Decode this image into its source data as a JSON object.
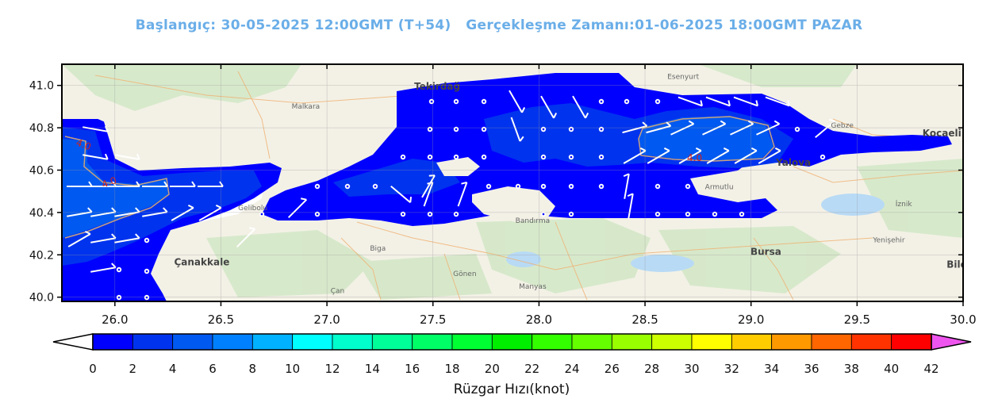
{
  "header": {
    "start_label": "Başlangıç: 30-05-2025 12:00GMT (T+54)",
    "valid_label": "Gerçekleşme Zamanı:01-06-2025 18:00GMT PAZAR"
  },
  "map": {
    "lon_range": [
      25.75,
      30.0
    ],
    "lat_range": [
      39.98,
      41.1
    ],
    "x_ticks": [
      "26.0",
      "26.5",
      "27.0",
      "27.5",
      "28.0",
      "28.5",
      "29.0",
      "29.5",
      "30.0"
    ],
    "x_tick_values": [
      26.0,
      26.5,
      27.0,
      27.5,
      28.0,
      28.5,
      29.0,
      29.5,
      30.0
    ],
    "y_ticks": [
      "40.0",
      "40.2",
      "40.4",
      "40.6",
      "40.8",
      "41.0"
    ],
    "y_tick_values": [
      40.0,
      40.2,
      40.4,
      40.6,
      40.8,
      41.0
    ],
    "contour_label": "4.0",
    "places": [
      {
        "name": "Tekirdağ",
        "lon": 27.52,
        "lat": 40.98,
        "bold": true
      },
      {
        "name": "Malkara",
        "lon": 26.9,
        "lat": 40.89,
        "bold": false
      },
      {
        "name": "Esenyurt",
        "lon": 28.68,
        "lat": 41.03,
        "bold": false
      },
      {
        "name": "Gebze",
        "lon": 29.43,
        "lat": 40.8,
        "bold": false
      },
      {
        "name": "Kocaeli",
        "lon": 29.9,
        "lat": 40.76,
        "bold": true
      },
      {
        "name": "Yalova",
        "lon": 29.2,
        "lat": 40.62,
        "bold": true
      },
      {
        "name": "Armutlu",
        "lon": 28.85,
        "lat": 40.51,
        "bold": false
      },
      {
        "name": "Bandırma",
        "lon": 27.97,
        "lat": 40.35,
        "bold": false
      },
      {
        "name": "Biga",
        "lon": 27.24,
        "lat": 40.22,
        "bold": false
      },
      {
        "name": "Gönen",
        "lon": 27.65,
        "lat": 40.1,
        "bold": false
      },
      {
        "name": "Manyas",
        "lon": 27.97,
        "lat": 40.04,
        "bold": false
      },
      {
        "name": "Bursa",
        "lon": 29.07,
        "lat": 40.2,
        "bold": true
      },
      {
        "name": "Çanakkale",
        "lon": 26.41,
        "lat": 40.15,
        "bold": true
      },
      {
        "name": "Gelibolu",
        "lon": 26.65,
        "lat": 40.41,
        "bold": false
      },
      {
        "name": "İznik",
        "lon": 29.72,
        "lat": 40.43,
        "bold": false
      },
      {
        "name": "Yenişehir",
        "lon": 29.65,
        "lat": 40.26,
        "bold": false
      },
      {
        "name": "Bile",
        "lon": 29.97,
        "lat": 40.14,
        "bold": true
      },
      {
        "name": "Çan",
        "lon": 27.05,
        "lat": 40.02,
        "bold": false
      }
    ]
  },
  "colorbar": {
    "label": "Rüzgar Hızı(knot)",
    "ticks": [
      "0",
      "2",
      "4",
      "6",
      "8",
      "10",
      "12",
      "14",
      "16",
      "18",
      "20",
      "22",
      "24",
      "26",
      "28",
      "30",
      "32",
      "34",
      "36",
      "38",
      "40",
      "42"
    ],
    "colors": [
      "#0000ff",
      "#0033ee",
      "#0059f0",
      "#0080ff",
      "#00b2ff",
      "#00ffff",
      "#00ffcc",
      "#00ff99",
      "#00ff66",
      "#00ff33",
      "#00ee00",
      "#33ff00",
      "#66ff00",
      "#99ff00",
      "#ccff00",
      "#ffff00",
      "#ffcc00",
      "#ff9900",
      "#ff6600",
      "#ff3300",
      "#ff0000"
    ],
    "over_color": "#ee55ee",
    "under_color": "#ffffff"
  }
}
